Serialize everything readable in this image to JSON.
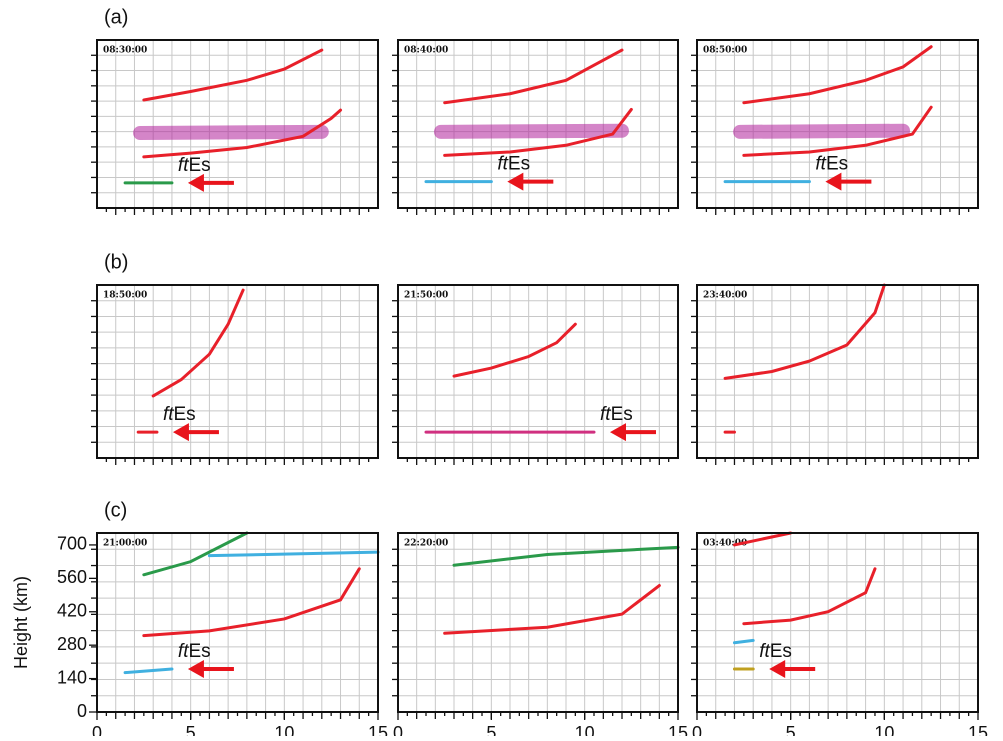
{
  "chart_data": [
    {
      "type": "line",
      "panel_label": "(a)",
      "title": "08:30:00",
      "xlim": [
        0,
        15
      ],
      "ylim": [
        0,
        750
      ],
      "annotation": {
        "prefix": "ft",
        "suffix": "Es"
      },
      "series": [
        {
          "color": "#b0209a",
          "x": [
            2.3,
            12
          ],
          "values": [
            335,
            340
          ]
        },
        {
          "color": "#e8202a",
          "x": [
            2.5,
            5,
            8,
            10,
            12
          ],
          "values": [
            482,
            520,
            570,
            620,
            705
          ]
        },
        {
          "color": "#e8202a",
          "x": [
            2.5,
            5,
            8,
            11,
            12.5,
            13
          ],
          "values": [
            228,
            245,
            270,
            320,
            400,
            437
          ]
        },
        {
          "color": "#2a9a4a",
          "x": [
            1.5,
            4
          ],
          "values": [
            112,
            112
          ]
        }
      ]
    },
    {
      "type": "line",
      "title": "08:40:00",
      "xlim": [
        0,
        15
      ],
      "ylim": [
        0,
        750
      ],
      "annotation": {
        "prefix": "ft",
        "suffix": "Es"
      },
      "series": [
        {
          "color": "#b0209a",
          "x": [
            2.3,
            12
          ],
          "values": [
            340,
            345
          ]
        },
        {
          "color": "#e8202a",
          "x": [
            2.5,
            6,
            9,
            12
          ],
          "values": [
            470,
            510,
            570,
            705
          ]
        },
        {
          "color": "#e8202a",
          "x": [
            2.5,
            6,
            9,
            11.5,
            12.5
          ],
          "values": [
            235,
            250,
            280,
            330,
            440
          ]
        },
        {
          "color": "#40b0e0",
          "x": [
            1.5,
            5
          ],
          "values": [
            118,
            118
          ]
        }
      ]
    },
    {
      "type": "line",
      "title": "08:50:00",
      "xlim": [
        0,
        15
      ],
      "ylim": [
        0,
        750
      ],
      "annotation": {
        "prefix": "ft",
        "suffix": "Es"
      },
      "series": [
        {
          "color": "#b0209a",
          "x": [
            2.3,
            11
          ],
          "values": [
            340,
            345
          ]
        },
        {
          "color": "#e8202a",
          "x": [
            2.5,
            6,
            9,
            11,
            12.5
          ],
          "values": [
            470,
            510,
            570,
            630,
            720
          ]
        },
        {
          "color": "#e8202a",
          "x": [
            2.5,
            6,
            9,
            11.5,
            12.5
          ],
          "values": [
            235,
            250,
            280,
            330,
            450
          ]
        },
        {
          "color": "#40b0e0",
          "x": [
            1.5,
            6
          ],
          "values": [
            118,
            118
          ]
        }
      ]
    },
    {
      "type": "line",
      "panel_label": "(b)",
      "title": "18:50:00",
      "xlim": [
        0,
        15
      ],
      "ylim": [
        0,
        750
      ],
      "annotation": {
        "prefix": "ft",
        "suffix": "Es"
      },
      "series": [
        {
          "color": "#e8202a",
          "x": [
            3,
            4.5,
            6,
            7,
            7.8
          ],
          "values": [
            269,
            340,
            450,
            580,
            728
          ]
        },
        {
          "color": "#e8202a",
          "x": [
            2.2,
            3.2
          ],
          "values": [
            112,
            112
          ]
        }
      ]
    },
    {
      "type": "line",
      "title": "21:50:00",
      "xlim": [
        0,
        15
      ],
      "ylim": [
        0,
        750
      ],
      "annotation": {
        "prefix": "ft",
        "suffix": "Es"
      },
      "series": [
        {
          "color": "#e8202a",
          "x": [
            3,
            5,
            7,
            8.5,
            9.5
          ],
          "values": [
            355,
            390,
            440,
            500,
            580
          ]
        },
        {
          "color": "#d03080",
          "x": [
            1.5,
            10.5
          ],
          "values": [
            112,
            112
          ]
        }
      ]
    },
    {
      "type": "line",
      "title": "23:40:00",
      "xlim": [
        0,
        15
      ],
      "ylim": [
        0,
        750
      ],
      "series": [
        {
          "color": "#e8202a",
          "x": [
            1.5,
            4,
            6,
            8,
            9.5,
            10
          ],
          "values": [
            345,
            375,
            420,
            490,
            630,
            750
          ]
        },
        {
          "color": "#e8202a",
          "x": [
            1.5,
            2
          ],
          "values": [
            112,
            112
          ]
        }
      ]
    },
    {
      "type": "line",
      "panel_label": "(c)",
      "title": "21:00:00",
      "xlim": [
        0,
        15
      ],
      "ylim": [
        0,
        750
      ],
      "ylabel": "Height (km)",
      "xticks": [
        0,
        5,
        10,
        15
      ],
      "yticks": [
        0,
        140,
        280,
        420,
        560,
        700
      ],
      "annotation": {
        "prefix": "ft",
        "suffix": "Es"
      },
      "series": [
        {
          "color": "#2a9a4a",
          "x": [
            2.5,
            5,
            8
          ],
          "values": [
            575,
            630,
            750
          ]
        },
        {
          "color": "#40b0e0",
          "x": [
            6,
            15
          ],
          "values": [
            655,
            670
          ]
        },
        {
          "color": "#e8202a",
          "x": [
            2.5,
            6,
            10,
            13,
            14
          ],
          "values": [
            320,
            340,
            390,
            470,
            600
          ]
        },
        {
          "color": "#40b0e0",
          "x": [
            1.5,
            4
          ],
          "values": [
            165,
            180
          ]
        }
      ]
    },
    {
      "type": "line",
      "title": "22:20:00",
      "xlim": [
        0,
        15
      ],
      "ylim": [
        0,
        750
      ],
      "xticks": [
        0,
        5,
        10,
        15
      ],
      "series": [
        {
          "color": "#2a9a4a",
          "x": [
            3,
            8,
            15
          ],
          "values": [
            615,
            660,
            690
          ]
        },
        {
          "color": "#e8202a",
          "x": [
            2.5,
            8,
            12,
            14
          ],
          "values": [
            330,
            355,
            410,
            530
          ]
        }
      ]
    },
    {
      "type": "line",
      "title": "03:40:00",
      "xlim": [
        0,
        15
      ],
      "ylim": [
        0,
        750
      ],
      "xticks": [
        0,
        5,
        10,
        15
      ],
      "annotation": {
        "prefix": "ft",
        "suffix": "Es"
      },
      "series": [
        {
          "color": "#e8202a",
          "x": [
            2,
            5
          ],
          "values": [
            700,
            750
          ]
        },
        {
          "color": "#40b0e0",
          "x": [
            2,
            3
          ],
          "values": [
            290,
            300
          ]
        },
        {
          "color": "#e8202a",
          "x": [
            2.5,
            5,
            7,
            9,
            9.5
          ],
          "values": [
            370,
            385,
            420,
            500,
            600
          ]
        },
        {
          "color": "#c0a020",
          "x": [
            2,
            3
          ],
          "values": [
            180,
            180
          ]
        }
      ]
    }
  ]
}
